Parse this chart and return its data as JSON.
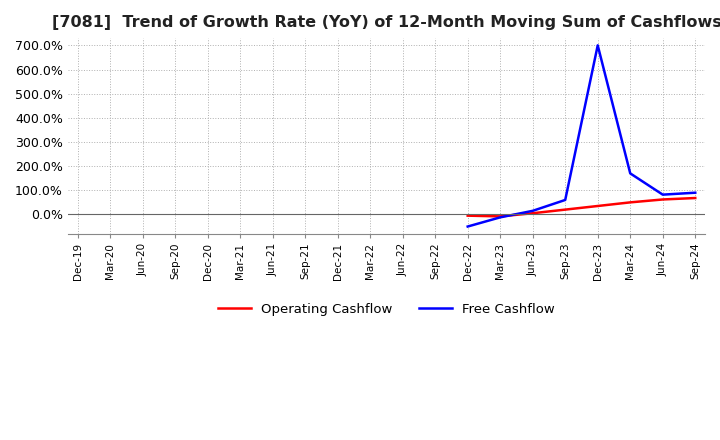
{
  "title": "[7081]  Trend of Growth Rate (YoY) of 12-Month Moving Sum of Cashflows",
  "title_fontsize": 11.5,
  "legend_entries": [
    "Operating Cashflow",
    "Free Cashflow"
  ],
  "line_colors": [
    "#ff0000",
    "#0000ff"
  ],
  "x_tick_labels": [
    "Dec-19",
    "Mar-20",
    "Jun-20",
    "Sep-20",
    "Dec-20",
    "Mar-21",
    "Jun-21",
    "Sep-21",
    "Dec-21",
    "Mar-22",
    "Jun-22",
    "Sep-22",
    "Dec-22",
    "Mar-23",
    "Jun-23",
    "Sep-23",
    "Dec-23",
    "Mar-24",
    "Jun-24",
    "Sep-24"
  ],
  "ylim": [
    -80,
    730
  ],
  "yticks": [
    0,
    100,
    200,
    300,
    400,
    500,
    600,
    700
  ],
  "ytick_labels": [
    "0.0%",
    "100.0%",
    "200.0%",
    "300.0%",
    "400.0%",
    "500.0%",
    "600.0%",
    "700.0%"
  ],
  "operating_cashflow": [
    null,
    null,
    null,
    null,
    null,
    null,
    null,
    null,
    null,
    null,
    null,
    null,
    -5,
    -8,
    5,
    20,
    35,
    50,
    62,
    68
  ],
  "free_cashflow": [
    null,
    null,
    null,
    null,
    null,
    null,
    null,
    null,
    null,
    null,
    null,
    null,
    -50,
    -12,
    15,
    60,
    700,
    170,
    82,
    90
  ],
  "background_color": "#ffffff",
  "grid_color": "#b0b0b0",
  "plot_bg_color": "#ffffff"
}
